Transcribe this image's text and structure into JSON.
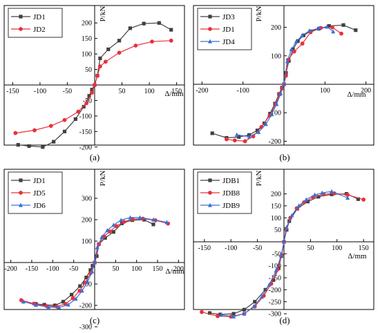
{
  "chart_data": [
    {
      "type": "line",
      "panel_label": "(a)",
      "xlabel": "Δ/mm",
      "ylabel": "P/kN",
      "xlim": [
        -170,
        160
      ],
      "ylim": [
        -225,
        225
      ],
      "xticks": [
        -150,
        -100,
        -50,
        50,
        100,
        150
      ],
      "yticks": [
        -200,
        -150,
        -100,
        -50,
        50,
        100,
        150,
        200
      ],
      "grid": false,
      "legend": "top-left",
      "series": [
        {
          "name": "JD1",
          "color": "#404040",
          "marker": "square",
          "x": [
            -140,
            -120,
            -95,
            -75,
            -55,
            -35,
            -20,
            -10,
            -5,
            0,
            5,
            10,
            25,
            45,
            65,
            90,
            118,
            140
          ],
          "y": [
            -193,
            -197,
            -200,
            -183,
            -150,
            -110,
            -70,
            -35,
            -15,
            0,
            30,
            86,
            115,
            143,
            183,
            198,
            200,
            178
          ]
        },
        {
          "name": "JD2",
          "color": "#e8303a",
          "marker": "circle",
          "x": [
            -145,
            -110,
            -80,
            -55,
            -30,
            -15,
            -5,
            0,
            5,
            10,
            20,
            45,
            75,
            105,
            140
          ],
          "y": [
            -155,
            -146,
            -132,
            -113,
            -86,
            -59,
            -25,
            0,
            30,
            60,
            75,
            104,
            127,
            140,
            143
          ]
        }
      ]
    },
    {
      "type": "line",
      "panel_label": "(b)",
      "xlabel": "Δ/mm",
      "ylabel": "P/kN",
      "xlim": [
        -230,
        210
      ],
      "ylim": [
        -255,
        235
      ],
      "xticks": [
        -200,
        -100,
        100,
        200
      ],
      "yticks": [
        -200,
        -100,
        100,
        200
      ],
      "grid": false,
      "legend": "top-left",
      "series": [
        {
          "name": "JD3",
          "color": "#404040",
          "marker": "square",
          "x": [
            -175,
            -140,
            -110,
            -85,
            -65,
            -48,
            -34,
            -22,
            -12,
            -5,
            0,
            5,
            12,
            22,
            34,
            48,
            65,
            85,
            110,
            145,
            175
          ],
          "y": [
            -172,
            -188,
            -185,
            -178,
            -162,
            -137,
            -103,
            -68,
            -34,
            -12,
            0,
            40,
            82,
            123,
            152,
            172,
            186,
            195,
            205,
            208,
            190
          ]
        },
        {
          "name": "JD1",
          "color": "#e8303a",
          "marker": "circle",
          "x": [
            -140,
            -120,
            -95,
            -75,
            -55,
            -35,
            -20,
            -10,
            -5,
            0,
            5,
            10,
            25,
            45,
            65,
            90,
            118,
            140
          ],
          "y": [
            -193,
            -197,
            -200,
            -183,
            -150,
            -110,
            -70,
            -35,
            -15,
            0,
            30,
            86,
            115,
            143,
            183,
            198,
            200,
            178
          ]
        },
        {
          "name": "JD4",
          "color": "#3a6fd8",
          "marker": "triangle",
          "x": [
            -115,
            -85,
            -62,
            -44,
            -30,
            -18,
            -8,
            0,
            8,
            18,
            30,
            44,
            62,
            85,
            105,
            120
          ],
          "y": [
            -177,
            -184,
            -168,
            -140,
            -106,
            -70,
            -32,
            0,
            80,
            122,
            150,
            171,
            188,
            197,
            202,
            185
          ]
        }
      ]
    },
    {
      "type": "line",
      "panel_label": "(c)",
      "xlabel": "Δ/mm",
      "ylabel": "P/kN",
      "xlim": [
        -215,
        215
      ],
      "ylim": [
        -335,
        320
      ],
      "xticks": [
        -200,
        -150,
        -100,
        -50,
        50,
        100,
        150,
        200
      ],
      "yticks": [
        -300,
        -200,
        -100,
        100,
        200,
        300
      ],
      "grid": false,
      "legend": "top-left",
      "series": [
        {
          "name": "JD1",
          "color": "#404040",
          "marker": "square",
          "x": [
            -140,
            -120,
            -95,
            -75,
            -55,
            -35,
            -20,
            -10,
            -5,
            0,
            5,
            10,
            25,
            45,
            65,
            90,
            118,
            140
          ],
          "y": [
            -193,
            -197,
            -200,
            -183,
            -150,
            -110,
            -70,
            -35,
            -15,
            0,
            30,
            86,
            115,
            143,
            183,
            198,
            200,
            178
          ]
        },
        {
          "name": "JD5",
          "color": "#e8303a",
          "marker": "circle",
          "x": [
            -175,
            -145,
            -115,
            -90,
            -70,
            -52,
            -36,
            -22,
            -10,
            0,
            10,
            22,
            36,
            52,
            70,
            90,
            115,
            145,
            175
          ],
          "y": [
            -176,
            -192,
            -203,
            -206,
            -193,
            -167,
            -132,
            -94,
            -50,
            0,
            85,
            122,
            145,
            170,
            190,
            203,
            205,
            197,
            182
          ]
        },
        {
          "name": "JD6",
          "color": "#3a6fd8",
          "marker": "triangle",
          "x": [
            -170,
            -140,
            -110,
            -85,
            -63,
            -45,
            -30,
            -17,
            -6,
            0,
            6,
            17,
            30,
            45,
            63,
            85,
            108,
            140,
            172
          ],
          "y": [
            -183,
            -198,
            -208,
            -210,
            -197,
            -170,
            -132,
            -90,
            -42,
            0,
            70,
            118,
            150,
            175,
            198,
            210,
            210,
            200,
            188
          ]
        }
      ]
    },
    {
      "type": "line",
      "panel_label": "(d)",
      "xlabel": "Δ/mm",
      "ylabel": "P/kN",
      "xlim": [
        -175,
        165
      ],
      "ylim": [
        -350,
        235
      ],
      "xticks": [
        -150,
        -100,
        -50,
        50,
        100,
        150
      ],
      "yticks": [
        -300,
        -250,
        -200,
        -150,
        -100,
        -50,
        50,
        100,
        150,
        200
      ],
      "grid": false,
      "legend": "top-left",
      "series": [
        {
          "name": "JDB1",
          "color": "#404040",
          "marker": "square",
          "x": [
            -140,
            -120,
            -95,
            -75,
            -55,
            -35,
            -20,
            -10,
            -5,
            0,
            5,
            10,
            25,
            45,
            65,
            90,
            118,
            140
          ],
          "y": [
            -297,
            -303,
            -300,
            -283,
            -250,
            -200,
            -160,
            -110,
            -60,
            0,
            50,
            86,
            138,
            168,
            188,
            198,
            200,
            178
          ]
        },
        {
          "name": "JDB8",
          "color": "#e8303a",
          "marker": "circle",
          "x": [
            -155,
            -125,
            -100,
            -75,
            -55,
            -38,
            -24,
            -12,
            -4,
            0,
            4,
            12,
            24,
            38,
            55,
            75,
            95,
            120,
            150
          ],
          "y": [
            -293,
            -310,
            -312,
            -300,
            -270,
            -225,
            -175,
            -115,
            -55,
            0,
            55,
            100,
            140,
            165,
            186,
            198,
            202,
            196,
            176
          ]
        },
        {
          "name": "JDB9",
          "color": "#3a6fd8",
          "marker": "triangle",
          "x": [
            -118,
            -95,
            -75,
            -57,
            -42,
            -28,
            -15,
            -5,
            0,
            5,
            15,
            28,
            42,
            58,
            72,
            90,
            120
          ],
          "y": [
            -305,
            -312,
            -300,
            -270,
            -230,
            -180,
            -120,
            -55,
            0,
            60,
            110,
            150,
            176,
            196,
            204,
            210,
            183
          ]
        }
      ]
    }
  ]
}
